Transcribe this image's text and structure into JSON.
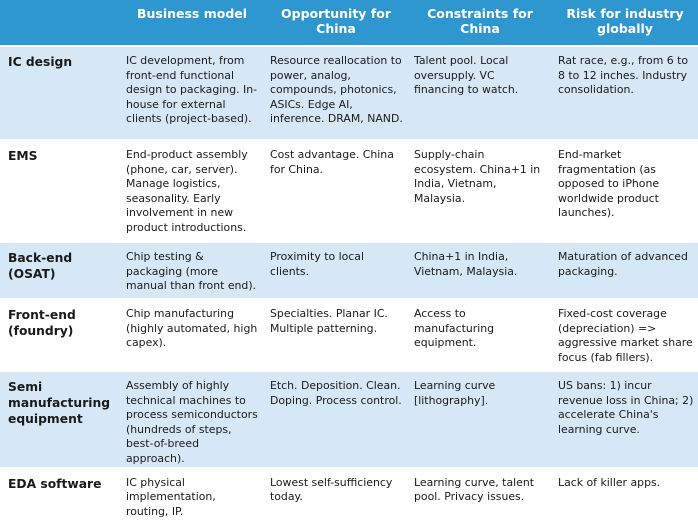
{
  "headers": [
    "",
    "Business model",
    "Opportunity for China",
    "Constraints for China",
    "Risk for industry globally"
  ],
  "rows": [
    {
      "segment": "IC design",
      "business_model": "IC development, from front-end functional design to packaging. In-house for external clients (project-based).",
      "opportunity": "Resource reallocation to power, analog, compounds, photonics, ASICs. Edge AI, inference. DRAM, NAND.",
      "constraints": "Talent pool. Local oversupply. VC financing to watch.",
      "risk": "Rat race, e.g., from 6 to 8 to 12 inches. Industry consolidation."
    },
    {
      "segment": "EMS",
      "business_model": "End-product assembly (phone, car, server). Manage logistics, seasonality. Early involvement in new product introductions.",
      "opportunity": "Cost advantage. China for China.",
      "constraints": "Supply-chain ecosystem. China+1 in India, Vietnam, Malaysia.",
      "risk": "End-market fragmentation (as opposed to iPhone worldwide product launches)."
    },
    {
      "segment": "Back-end (OSAT)",
      "business_model": "Chip testing & packaging (more manual than front end).",
      "opportunity": "Proximity to local clients.",
      "constraints": "China+1 in India, Vietnam, Malaysia.",
      "risk": "Maturation of advanced packaging."
    },
    {
      "segment": "Front-end (foundry)",
      "business_model": "Chip manufacturing (highly automated, high capex).",
      "opportunity": "Specialties. Planar IC. Multiple patterning.",
      "constraints": "Access to manufacturing equipment.",
      "risk": "Fixed-cost coverage (depreciation) => aggressive market share focus (fab fillers)."
    },
    {
      "segment": "Semi manufacturing equipment",
      "business_model": "Assembly of highly technical machines to process semiconductors (hundreds of steps, best-of-breed approach).",
      "opportunity": "Etch. Deposition. Clean. Doping. Process control.",
      "constraints": "Learning curve [lithography].",
      "risk": "US bans: 1) incur revenue loss in China; 2) accelerate China's learning curve."
    },
    {
      "segment": "EDA software",
      "business_model": "IC physical implementation, routing, IP.",
      "opportunity": "Lowest self-sufficiency today.",
      "constraints": "Learning curve, talent pool. Privacy issues.",
      "risk": "Lack of killer apps."
    }
  ]
}
